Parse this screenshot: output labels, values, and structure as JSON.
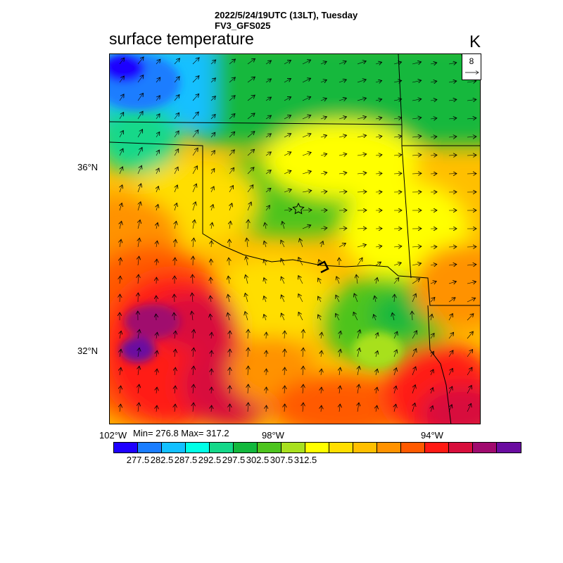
{
  "header": {
    "line1": "2022/5/24/19UTC (13LT), Tuesday",
    "line2": "FV3_GFS025"
  },
  "map": {
    "title": "surface temperature",
    "units": "K",
    "reference_vector": "8",
    "lat_labels": [
      "36°N",
      "32°N"
    ],
    "lon_labels": [
      "102°W",
      "98°W",
      "94°W"
    ],
    "min_max": "Min= 276.8 Max= 317.2",
    "marker": "star"
  },
  "colorbar": {
    "labels": [
      "277.5",
      "282.5",
      "287.5",
      "292.5",
      "297.5",
      "302.5",
      "307.5",
      "312.5"
    ],
    "colors": [
      "#1e00ff",
      "#1a7dff",
      "#12c0ff",
      "#00ffe6",
      "#14d889",
      "#12b83d",
      "#4dc41e",
      "#a8e01e",
      "#ffff00",
      "#ffde00",
      "#ffbf00",
      "#ff9200",
      "#ff5a00",
      "#ff1a14",
      "#d80e3c",
      "#a00a6e",
      "#6a0ca0"
    ]
  }
}
